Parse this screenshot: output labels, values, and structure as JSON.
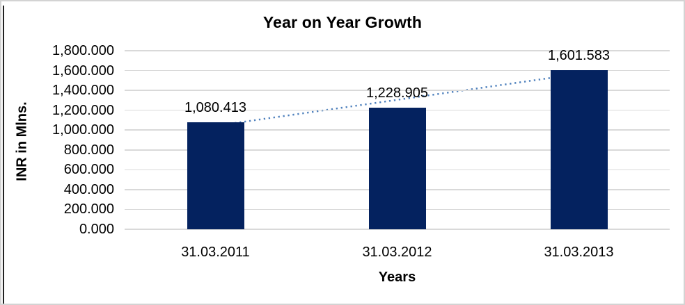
{
  "chart_data": {
    "type": "bar",
    "title": "Year on Year Growth",
    "xlabel": "Years",
    "ylabel": "INR in Mlns.",
    "categories": [
      "31.03.2011",
      "31.03.2012",
      "31.03.2013"
    ],
    "values": [
      1080.413,
      1228.905,
      1601.583
    ],
    "data_labels": [
      "1,080.413",
      "1,228.905",
      "1,601.583"
    ],
    "y_ticks": [
      "1,800.000",
      "1,600.000",
      "1,400.000",
      "1,200.000",
      "1,000.000",
      "800.000",
      "600.000",
      "400.000",
      "200.000",
      "0.000"
    ],
    "ylim": [
      0,
      1800
    ],
    "grid": true,
    "legend": "none",
    "trendline": {
      "type": "linear",
      "style": "dotted"
    }
  },
  "colors": {
    "bar": "#04225F",
    "trendline": "#4F81BD",
    "gridline": "#D9D9D9",
    "text": "#000000",
    "frame_border": "#D3D3D3",
    "cell_border": "#222222",
    "background": "#FFFFFF"
  }
}
